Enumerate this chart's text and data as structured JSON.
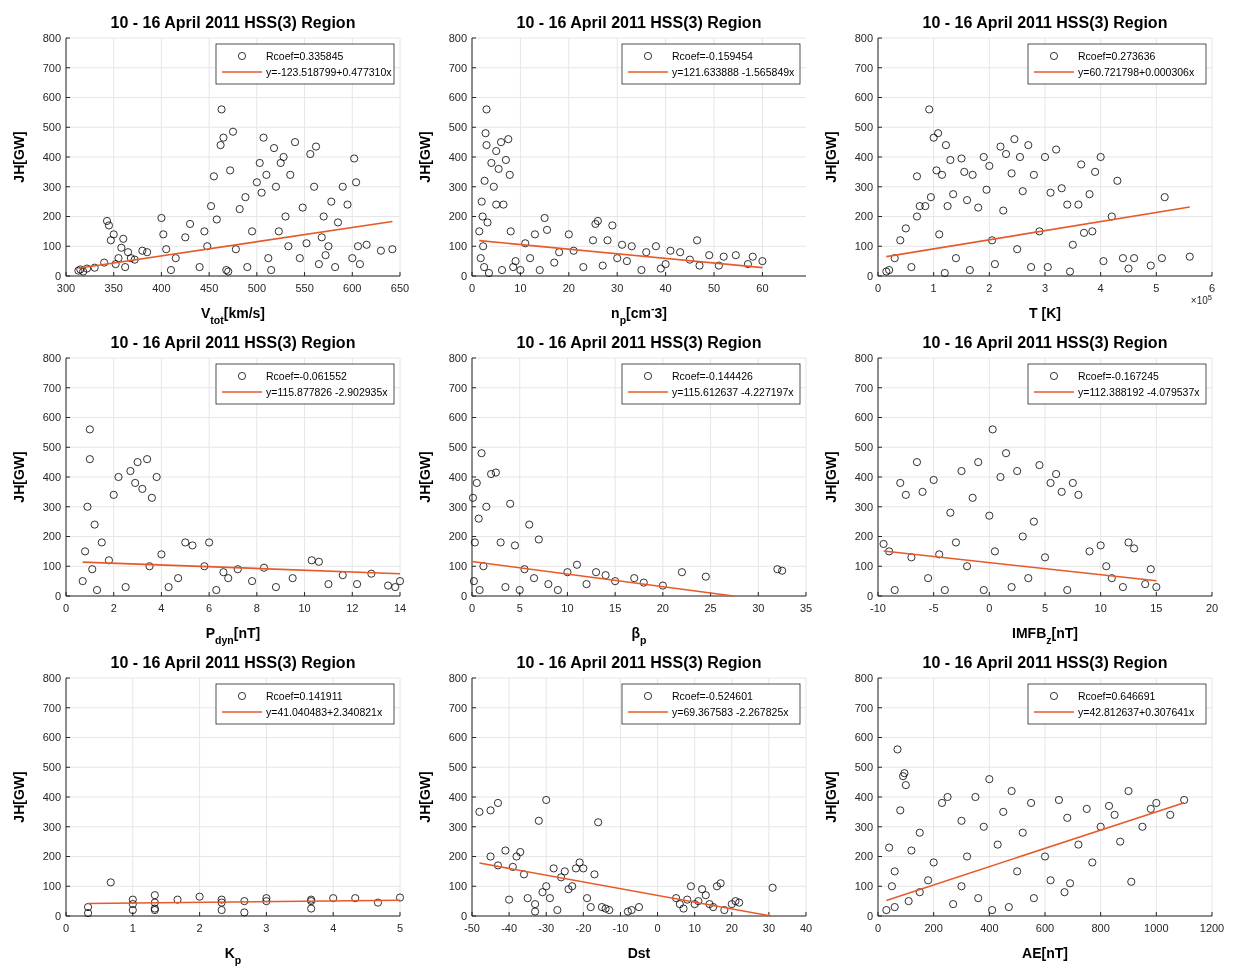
{
  "chart_data": [
    {
      "type": "scatter",
      "title": "10 - 16 April 2011 HSS(3) Region",
      "xlabel": "V$_{tot}$[km/s]",
      "ylabel": "JH[GW]",
      "xlim": [
        300,
        650
      ],
      "xticks": [
        300,
        350,
        400,
        450,
        500,
        550,
        600,
        650
      ],
      "ylim": [
        0,
        800
      ],
      "yticks": [
        0,
        100,
        200,
        300,
        400,
        500,
        600,
        700,
        800
      ],
      "grid": true,
      "legend": "top right",
      "marker": "circle",
      "series": [
        {
          "name": "Rcoef=0.335845",
          "color": "#000000",
          "x": [
            313,
            315,
            318,
            322,
            330,
            340,
            343,
            345,
            347,
            350,
            352,
            355,
            358,
            360,
            362,
            365,
            368,
            372,
            380,
            385,
            400,
            402,
            405,
            410,
            415,
            425,
            430,
            440,
            445,
            448,
            452,
            455,
            458,
            462,
            463,
            465,
            468,
            470,
            472,
            475,
            478,
            482,
            488,
            490,
            495,
            500,
            503,
            505,
            507,
            510,
            512,
            515,
            518,
            520,
            523,
            525,
            528,
            530,
            533,
            535,
            540,
            545,
            548,
            552,
            556,
            560,
            562,
            565,
            568,
            570,
            572,
            575,
            578,
            582,
            585,
            590,
            595,
            600,
            602,
            604,
            606,
            608,
            615,
            630,
            642
          ],
          "values": [
            18,
            22,
            15,
            25,
            28,
            45,
            185,
            170,
            120,
            140,
            40,
            60,
            95,
            125,
            30,
            80,
            60,
            55,
            85,
            80,
            195,
            140,
            90,
            20,
            60,
            130,
            175,
            30,
            150,
            100,
            235,
            335,
            190,
            440,
            560,
            465,
            20,
            15,
            355,
            485,
            90,
            225,
            265,
            30,
            150,
            315,
            380,
            280,
            465,
            340,
            60,
            20,
            430,
            300,
            150,
            380,
            400,
            200,
            100,
            340,
            450,
            60,
            230,
            110,
            410,
            300,
            435,
            40,
            130,
            200,
            70,
            100,
            250,
            30,
            180,
            300,
            240,
            60,
            395,
            315,
            100,
            40,
            105,
            85,
            90
          ]
        },
        {
          "type": "line",
          "name": "y=-123.518799+0.477310x",
          "marker": "none",
          "color": "#e8592a",
          "x": [
            313,
            642
          ],
          "values": [
            26,
            183
          ]
        }
      ]
    },
    {
      "type": "scatter",
      "title": "10 - 16 April 2011 HSS(3) Region",
      "xlabel": "n$_{p}$[cm$^{-}$3]",
      "ylabel": "JH[GW]",
      "xlim": [
        0,
        69
      ],
      "xticks": [
        0,
        10,
        20,
        30,
        40,
        50,
        60
      ],
      "ylim": [
        0,
        800
      ],
      "yticks": [
        0,
        100,
        200,
        300,
        400,
        500,
        600,
        700,
        800
      ],
      "grid": true,
      "legend": "top right",
      "marker": "circle",
      "series": [
        {
          "name": "Rcoef=-0.159454",
          "color": "#000000",
          "x": [
            1.5,
            1.8,
            2,
            2.2,
            2.3,
            2.5,
            2.6,
            2.8,
            3,
            3,
            3.2,
            3.5,
            4,
            4.5,
            5,
            5,
            5.5,
            6,
            6.2,
            6.5,
            7,
            7.5,
            7.8,
            8,
            8.5,
            9,
            10,
            11,
            12,
            13,
            14,
            15,
            15.5,
            17,
            18,
            20,
            21,
            23,
            25,
            25.5,
            26,
            27,
            28,
            29,
            30,
            31,
            32,
            33,
            35,
            36,
            38,
            39,
            40,
            41,
            43,
            45,
            46.5,
            47,
            49,
            51,
            52,
            54.5,
            57,
            58,
            60
          ],
          "values": [
            150,
            60,
            250,
            200,
            100,
            30,
            320,
            480,
            560,
            440,
            180,
            10,
            380,
            300,
            240,
            420,
            360,
            450,
            20,
            240,
            390,
            460,
            340,
            150,
            30,
            50,
            20,
            110,
            60,
            140,
            20,
            195,
            155,
            45,
            80,
            140,
            85,
            30,
            120,
            175,
            185,
            35,
            120,
            170,
            60,
            105,
            50,
            100,
            20,
            80,
            100,
            25,
            40,
            85,
            80,
            55,
            120,
            35,
            70,
            35,
            65,
            70,
            40,
            65,
            50
          ]
        },
        {
          "type": "line",
          "name": "y=121.633888 -1.565849x",
          "marker": "none",
          "color": "#e8592a",
          "x": [
            1.5,
            60
          ],
          "values": [
            119,
            28
          ]
        }
      ]
    },
    {
      "type": "scatter",
      "title": "10 - 16 April 2011 HSS(3) Region",
      "xlabel": "T [K]",
      "ylabel": "JH[GW]",
      "xlim": [
        0,
        6
      ],
      "xticks": [
        0,
        1,
        2,
        3,
        4,
        5,
        6
      ],
      "ylim": [
        0,
        800
      ],
      "yticks": [
        0,
        100,
        200,
        300,
        400,
        500,
        600,
        700,
        800
      ],
      "grid": true,
      "legend": "top right",
      "marker": "circle",
      "annotations": [
        "×10$^{5}$"
      ],
      "series": [
        {
          "name": "Rcoef=0.273636",
          "color": "#000000",
          "x": [
            0.15,
            0.2,
            0.3,
            0.4,
            0.5,
            0.6,
            0.7,
            0.7,
            0.75,
            0.85,
            0.92,
            0.95,
            1,
            1.05,
            1.08,
            1.1,
            1.15,
            1.2,
            1.22,
            1.25,
            1.3,
            1.35,
            1.4,
            1.5,
            1.55,
            1.6,
            1.65,
            1.7,
            1.8,
            1.9,
            1.95,
            2,
            2.05,
            2.1,
            2.2,
            2.25,
            2.3,
            2.4,
            2.45,
            2.5,
            2.55,
            2.6,
            2.7,
            2.75,
            2.8,
            2.9,
            3,
            3.05,
            3.1,
            3.2,
            3.3,
            3.4,
            3.45,
            3.5,
            3.6,
            3.65,
            3.7,
            3.8,
            3.85,
            3.9,
            4,
            4.05,
            4.2,
            4.3,
            4.4,
            4.5,
            4.6,
            4.9,
            5.1,
            5.15,
            5.6
          ],
          "values": [
            15,
            20,
            60,
            120,
            160,
            30,
            335,
            200,
            235,
            235,
            560,
            265,
            465,
            355,
            480,
            140,
            340,
            10,
            440,
            235,
            390,
            275,
            60,
            395,
            350,
            255,
            20,
            340,
            230,
            400,
            290,
            370,
            120,
            40,
            435,
            220,
            410,
            345,
            460,
            90,
            400,
            285,
            440,
            30,
            340,
            150,
            400,
            30,
            280,
            425,
            295,
            240,
            15,
            105,
            240,
            375,
            145,
            275,
            150,
            350,
            400,
            50,
            200,
            320,
            60,
            25,
            60,
            35,
            60,
            265,
            65
          ]
        },
        {
          "type": "line",
          "name": "y=60.721798+0.000306x",
          "marker": "none",
          "color": "#e8592a",
          "x": [
            0.15,
            5.6
          ],
          "values": [
            65,
            232
          ]
        }
      ]
    },
    {
      "type": "scatter",
      "title": "10 - 16 April 2011 HSS(3) Region",
      "xlabel": "P$_{dyn}$[nT]",
      "ylabel": "JH[GW]",
      "xlim": [
        0,
        14
      ],
      "xticks": [
        0,
        2,
        4,
        6,
        8,
        10,
        12,
        14
      ],
      "ylim": [
        0,
        800
      ],
      "yticks": [
        0,
        100,
        200,
        300,
        400,
        500,
        600,
        700,
        800
      ],
      "grid": true,
      "legend": "top right",
      "marker": "circle",
      "series": [
        {
          "name": "Rcoef=-0.061552",
          "color": "#000000",
          "x": [
            0.7,
            0.8,
            0.9,
            1,
            1,
            1.1,
            1.2,
            1.3,
            1.5,
            1.8,
            2,
            2.2,
            2.5,
            2.7,
            2.9,
            3.0,
            3.2,
            3.4,
            3.5,
            3.6,
            3.8,
            4,
            4.3,
            4.7,
            5,
            5.3,
            5.8,
            6,
            6.3,
            6.6,
            6.8,
            7.2,
            7.8,
            8.3,
            8.8,
            9.5,
            10.3,
            10.6,
            11,
            11.6,
            12.2,
            12.8,
            13.5,
            13.8,
            14
          ],
          "values": [
            50,
            150,
            300,
            560,
            460,
            90,
            240,
            20,
            180,
            120,
            340,
            400,
            30,
            420,
            380,
            450,
            360,
            460,
            100,
            330,
            400,
            140,
            30,
            60,
            180,
            170,
            100,
            180,
            20,
            80,
            60,
            90,
            50,
            95,
            30,
            60,
            120,
            115,
            40,
            70,
            40,
            75,
            35,
            30,
            50
          ]
        },
        {
          "type": "line",
          "name": "y=115.877826 -2.902935x",
          "marker": "none",
          "color": "#e8592a",
          "x": [
            0.7,
            14
          ],
          "values": [
            114,
            75
          ]
        }
      ]
    },
    {
      "type": "scatter",
      "title": "10 - 16 April 2011 HSS(3) Region",
      "xlabel": "β$_{p}$",
      "ylabel": "JH[GW]",
      "xlim": [
        0,
        35
      ],
      "xticks": [
        0,
        5,
        10,
        15,
        20,
        25,
        30,
        35
      ],
      "ylim": [
        0,
        800
      ],
      "yticks": [
        0,
        100,
        200,
        300,
        400,
        500,
        600,
        700,
        800
      ],
      "grid": true,
      "legend": "top right",
      "marker": "circle",
      "series": [
        {
          "name": "Rcoef=-0.144426",
          "color": "#000000",
          "x": [
            0.1,
            0.2,
            0.3,
            0.5,
            0.7,
            0.8,
            1,
            1.2,
            1.5,
            2,
            2.5,
            3,
            3.5,
            4,
            4.5,
            5,
            5.5,
            6,
            6.5,
            7,
            8,
            9,
            10,
            11,
            12,
            13,
            14,
            15,
            17,
            18,
            20,
            22,
            24.5,
            32,
            32.5
          ],
          "values": [
            330,
            50,
            180,
            380,
            260,
            20,
            480,
            100,
            300,
            410,
            415,
            180,
            30,
            310,
            170,
            20,
            90,
            240,
            60,
            190,
            40,
            20,
            80,
            105,
            40,
            80,
            70,
            50,
            60,
            45,
            35,
            80,
            65,
            90,
            85
          ]
        },
        {
          "type": "line",
          "name": "y=115.612637 -4.227197x",
          "marker": "none",
          "color": "#e8592a",
          "x": [
            0,
            27.4
          ],
          "values": [
            116,
            0
          ]
        }
      ]
    },
    {
      "type": "scatter",
      "title": "10 - 16 April 2011 HSS(3) Region",
      "xlabel": "IMFB$_{z}$[nT]",
      "ylabel": "JH[GW]",
      "xlim": [
        -10,
        20
      ],
      "xticks": [
        -10,
        -5,
        0,
        5,
        10,
        15,
        20
      ],
      "ylim": [
        0,
        800
      ],
      "yticks": [
        0,
        100,
        200,
        300,
        400,
        500,
        600,
        700,
        800
      ],
      "grid": true,
      "legend": "top right",
      "marker": "circle",
      "series": [
        {
          "name": "Rcoef=-0.167245",
          "color": "#000000",
          "x": [
            -9.5,
            -9,
            -8.5,
            -8,
            -7.5,
            -7,
            -6.5,
            -6,
            -5.5,
            -5,
            -4.5,
            -4,
            -3.5,
            -3,
            -2.5,
            -2,
            -1.5,
            -1,
            -0.5,
            0,
            0.3,
            0.5,
            1,
            1.5,
            2,
            2.5,
            3,
            3.5,
            4,
            4.5,
            5,
            5.5,
            6,
            6.5,
            7,
            7.5,
            8,
            9,
            10,
            10.5,
            11,
            12,
            12.5,
            13,
            14,
            14.5,
            15
          ],
          "values": [
            175,
            150,
            20,
            380,
            340,
            130,
            450,
            350,
            60,
            390,
            140,
            20,
            280,
            180,
            420,
            100,
            330,
            450,
            20,
            270,
            560,
            150,
            400,
            480,
            30,
            420,
            200,
            60,
            250,
            440,
            130,
            380,
            410,
            350,
            20,
            380,
            340,
            150,
            170,
            100,
            60,
            30,
            180,
            160,
            40,
            90,
            30
          ]
        },
        {
          "type": "line",
          "name": "y=112.388192 -4.079537x",
          "marker": "none",
          "color": "#e8592a",
          "x": [
            -9.5,
            15
          ],
          "values": [
            151,
            51
          ]
        }
      ]
    },
    {
      "type": "scatter",
      "title": "10 - 16 April 2011 HSS(3) Region",
      "xlabel": "K$_{p}$",
      "ylabel": "JH[GW]",
      "xlim": [
        0,
        5
      ],
      "xticks": [
        0,
        1,
        2,
        3,
        4,
        5
      ],
      "ylim": [
        0,
        800
      ],
      "yticks": [
        0,
        100,
        200,
        300,
        400,
        500,
        600,
        700,
        800
      ],
      "grid": true,
      "legend": "top right",
      "marker": "circle",
      "series": [
        {
          "name": "Rcoef=0.141911",
          "color": "#000000",
          "x": [
            0.33,
            0.33,
            0.67,
            1,
            1,
            1,
            1.33,
            1.33,
            1.33,
            1.33,
            1.67,
            2,
            2.33,
            2.33,
            2.33,
            2.67,
            2.67,
            3,
            3,
            3.67,
            3.67,
            3.67,
            4,
            4.33,
            4.67,
            5
          ],
          "values": [
            10,
            30,
            113,
            55,
            20,
            40,
            70,
            45,
            25,
            20,
            55,
            65,
            55,
            45,
            20,
            50,
            12,
            60,
            50,
            25,
            50,
            55,
            60,
            60,
            45,
            62
          ]
        },
        {
          "type": "line",
          "name": "y=41.040483+2.340821x",
          "marker": "none",
          "color": "#e8592a",
          "x": [
            0.33,
            5
          ],
          "values": [
            42,
            53
          ]
        }
      ]
    },
    {
      "type": "scatter",
      "title": "10 - 16 April 2011 HSS(3) Region",
      "xlabel": "Dst",
      "ylabel": "JH[GW]",
      "xlim": [
        -50,
        40
      ],
      "xticks": [
        -50,
        -40,
        -30,
        -20,
        -10,
        0,
        10,
        20,
        30,
        40
      ],
      "ylim": [
        0,
        800
      ],
      "yticks": [
        0,
        100,
        200,
        300,
        400,
        500,
        600,
        700,
        800
      ],
      "grid": true,
      "legend": "top right",
      "marker": "circle",
      "series": [
        {
          "name": "Rcoef=-0.524601",
          "color": "#000000",
          "x": [
            -48,
            -45,
            -45,
            -43,
            -43,
            -41,
            -40,
            -39,
            -38,
            -37,
            -36,
            -35,
            -33,
            -33,
            -32,
            -31,
            -30,
            -30,
            -29,
            -28,
            -27,
            -26,
            -25,
            -24,
            -23,
            -22,
            -21,
            -20,
            -19,
            -18,
            -17,
            -16,
            -15,
            -14,
            -13,
            -8,
            -7,
            -5,
            5,
            6,
            7,
            8,
            9,
            10,
            11,
            12,
            13,
            14,
            15,
            16,
            17,
            18,
            20,
            21,
            22,
            31
          ],
          "values": [
            350,
            355,
            200,
            380,
            170,
            220,
            55,
            165,
            200,
            215,
            140,
            60,
            40,
            15,
            320,
            80,
            390,
            100,
            60,
            160,
            20,
            130,
            150,
            90,
            100,
            160,
            180,
            160,
            60,
            30,
            140,
            315,
            30,
            25,
            20,
            15,
            20,
            30,
            60,
            40,
            25,
            55,
            100,
            40,
            50,
            90,
            70,
            40,
            30,
            100,
            110,
            20,
            40,
            50,
            45,
            95
          ]
        },
        {
          "type": "line",
          "name": "y=69.367583 -2.267825x",
          "marker": "none",
          "color": "#e8592a",
          "x": [
            -48,
            30.6
          ],
          "values": [
            178,
            0
          ]
        }
      ]
    },
    {
      "type": "scatter",
      "title": "10 - 16 April 2011 HSS(3) Region",
      "xlabel": "AE[nT]",
      "ylabel": "JH[GW]",
      "xlim": [
        0,
        1200
      ],
      "xticks": [
        0,
        200,
        400,
        600,
        800,
        1000,
        1200
      ],
      "ylim": [
        0,
        800
      ],
      "yticks": [
        0,
        100,
        200,
        300,
        400,
        500,
        600,
        700,
        800
      ],
      "grid": true,
      "legend": "top right",
      "marker": "circle",
      "series": [
        {
          "name": "Rcoef=0.646691",
          "color": "#000000",
          "x": [
            30,
            40,
            50,
            60,
            60,
            70,
            80,
            90,
            95,
            100,
            110,
            120,
            150,
            150,
            180,
            200,
            230,
            250,
            270,
            300,
            300,
            320,
            350,
            360,
            380,
            400,
            410,
            430,
            450,
            470,
            480,
            500,
            520,
            550,
            560,
            600,
            620,
            650,
            670,
            680,
            690,
            720,
            750,
            770,
            800,
            830,
            850,
            870,
            900,
            910,
            950,
            980,
            1000,
            1050,
            1100
          ],
          "values": [
            20,
            230,
            100,
            150,
            30,
            560,
            355,
            470,
            480,
            440,
            50,
            220,
            280,
            80,
            120,
            180,
            380,
            400,
            40,
            320,
            100,
            200,
            400,
            60,
            300,
            460,
            20,
            240,
            350,
            30,
            420,
            150,
            280,
            380,
            60,
            200,
            120,
            390,
            80,
            330,
            110,
            240,
            360,
            180,
            300,
            370,
            340,
            250,
            420,
            115,
            300,
            360,
            380,
            340,
            390
          ]
        },
        {
          "type": "line",
          "name": "y=42.812637+0.307641x",
          "marker": "none",
          "color": "#e8592a",
          "x": [
            30,
            1100
          ],
          "values": [
            52,
            381
          ]
        }
      ]
    }
  ]
}
